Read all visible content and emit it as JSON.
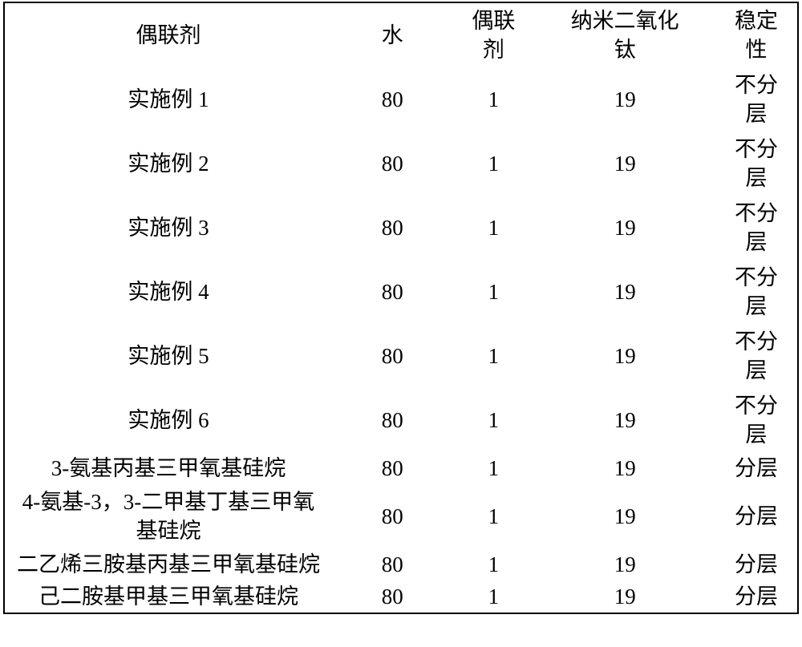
{
  "table": {
    "headers": {
      "agent": "偶联剂",
      "water": "水",
      "coupling_line1": "偶联",
      "coupling_line2": "剂",
      "tio2_line1": "纳米二氧化",
      "tio2_line2": "钛",
      "stability_line1": "稳定",
      "stability_line2": "性"
    },
    "rows": [
      {
        "agent": "实施例 1",
        "water": "80",
        "coupling": "1",
        "tio2": "19",
        "stab1": "不分",
        "stab2": "层",
        "twoLineStab": true,
        "twoLineAgent": false
      },
      {
        "agent": "实施例 2",
        "water": "80",
        "coupling": "1",
        "tio2": "19",
        "stab1": "不分",
        "stab2": "层",
        "twoLineStab": true,
        "twoLineAgent": false
      },
      {
        "agent": "实施例 3",
        "water": "80",
        "coupling": "1",
        "tio2": "19",
        "stab1": "不分",
        "stab2": "层",
        "twoLineStab": true,
        "twoLineAgent": false
      },
      {
        "agent": "实施例 4",
        "water": "80",
        "coupling": "1",
        "tio2": "19",
        "stab1": "不分",
        "stab2": "层",
        "twoLineStab": true,
        "twoLineAgent": false
      },
      {
        "agent": "实施例 5",
        "water": "80",
        "coupling": "1",
        "tio2": "19",
        "stab1": "不分",
        "stab2": "层",
        "twoLineStab": true,
        "twoLineAgent": false
      },
      {
        "agent": "实施例 6",
        "water": "80",
        "coupling": "1",
        "tio2": "19",
        "stab1": "不分",
        "stab2": "层",
        "twoLineStab": true,
        "twoLineAgent": false
      },
      {
        "agent": "3-氨基丙基三甲氧基硅烷",
        "water": "80",
        "coupling": "1",
        "tio2": "19",
        "stab1": "分层",
        "stab2": "",
        "twoLineStab": false,
        "twoLineAgent": false
      },
      {
        "agent_line1": "4-氨基-3，3-二甲基丁基三甲氧",
        "agent_line2": "基硅烷",
        "water": "80",
        "coupling": "1",
        "tio2": "19",
        "stab1": "分层",
        "stab2": "",
        "twoLineStab": false,
        "twoLineAgent": true
      },
      {
        "agent": "二乙烯三胺基丙基三甲氧基硅烷",
        "water": "80",
        "coupling": "1",
        "tio2": "19",
        "stab1": "分层",
        "stab2": "",
        "twoLineStab": false,
        "twoLineAgent": false
      },
      {
        "agent": "己二胺基甲基三甲氧基硅烷",
        "water": "80",
        "coupling": "1",
        "tio2": "19",
        "stab1": "分层",
        "stab2": "",
        "twoLineStab": false,
        "twoLineAgent": false
      }
    ]
  }
}
